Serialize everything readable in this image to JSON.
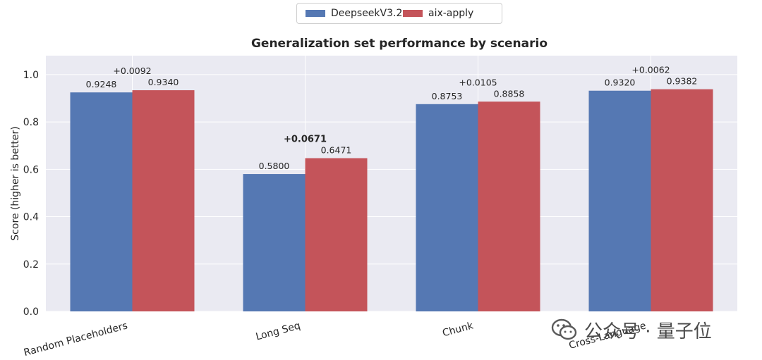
{
  "legend": {
    "items": [
      {
        "label": "DeepseekV3.2",
        "color": "#5578b3"
      },
      {
        "label": "aix-apply",
        "color": "#c4545a"
      }
    ]
  },
  "watermark": {
    "text": "公众号 · 量子位",
    "icon": "wechat-icon"
  },
  "chart_data": {
    "type": "bar",
    "title": "Generalization set performance by scenario",
    "ylabel": "Score (higher is better)",
    "xlabel": "",
    "ylim": [
      0,
      1.08
    ],
    "yticks": [
      "0.0",
      "0.2",
      "0.4",
      "0.6",
      "0.8",
      "1.0"
    ],
    "categories": [
      "Random Placeholders",
      "Long Seq",
      "Chunk",
      "Cross-Language"
    ],
    "series": [
      {
        "name": "DeepseekV3.2",
        "color": "#5578b3",
        "values": [
          0.9248,
          0.58,
          0.8753,
          0.932
        ],
        "labels": [
          "0.9248",
          "0.5800",
          "0.8753",
          "0.9320"
        ]
      },
      {
        "name": "aix-apply",
        "color": "#c4545a",
        "values": [
          0.934,
          0.6471,
          0.8858,
          0.9382
        ],
        "labels": [
          "0.9340",
          "0.6471",
          "0.8858",
          "0.9382"
        ]
      }
    ],
    "deltas": [
      "+0.0092",
      "+0.0671",
      "+0.0105",
      "+0.0062"
    ],
    "bold_delta_index": 1,
    "grid": true,
    "legend_position": "top-center"
  }
}
